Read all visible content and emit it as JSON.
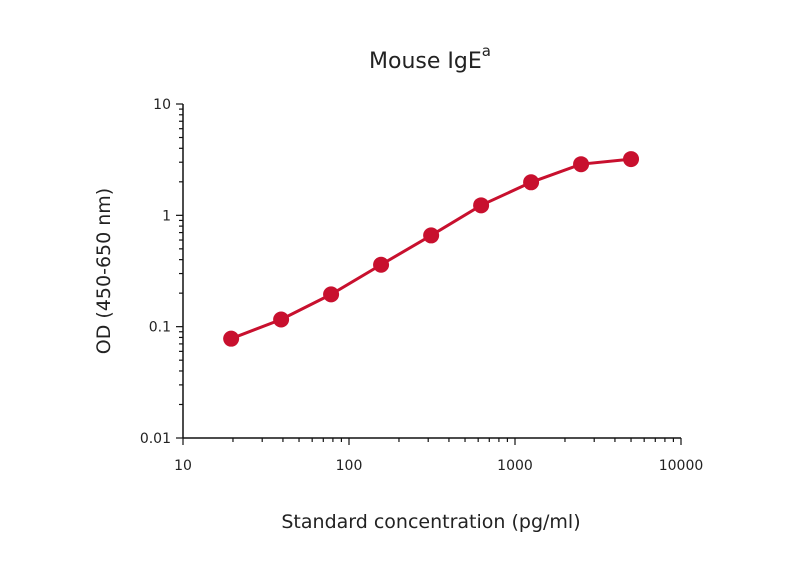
{
  "chart_data": {
    "type": "line",
    "title": "Mouse IgE",
    "title_superscript": "a",
    "xlabel": "Standard concentration (pg/ml)",
    "ylabel": "OD (450-650 nm)",
    "x_scale": "log",
    "y_scale": "log",
    "xlim": [
      10,
      10000
    ],
    "ylim": [
      0.01,
      10
    ],
    "x_ticks": [
      "10",
      "100",
      "1000",
      "10000"
    ],
    "y_ticks": [
      "0.01",
      "0.1",
      "1",
      "10"
    ],
    "grid": false,
    "color": "#c8102e",
    "series": [
      {
        "x": [
          19.5,
          39,
          78,
          156,
          312.5,
          625,
          1250,
          2500,
          5000
        ],
        "y": [
          0.078,
          0.116,
          0.195,
          0.36,
          0.66,
          1.23,
          1.98,
          2.88,
          3.2
        ]
      }
    ]
  }
}
